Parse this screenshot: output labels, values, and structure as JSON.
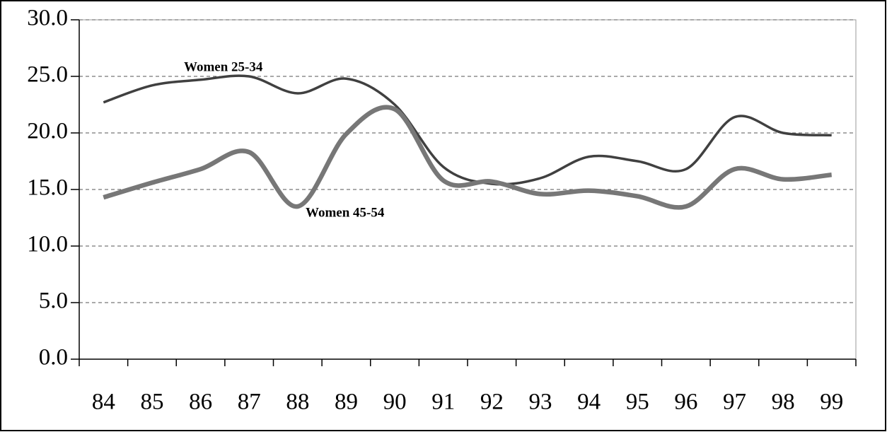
{
  "chart_data": {
    "type": "line",
    "categories": [
      "84",
      "85",
      "86",
      "87",
      "88",
      "89",
      "90",
      "91",
      "92",
      "93",
      "94",
      "95",
      "96",
      "97",
      "98",
      "99"
    ],
    "series": [
      {
        "name": "Women 25-34",
        "color": "#404040",
        "values": [
          22.7,
          24.2,
          24.7,
          25.0,
          23.5,
          24.8,
          22.5,
          17.0,
          15.5,
          16.0,
          17.9,
          17.5,
          16.8,
          21.4,
          20.0,
          19.8
        ]
      },
      {
        "name": "Women 45-54",
        "color": "#777777",
        "values": [
          14.3,
          15.6,
          16.8,
          18.3,
          13.5,
          19.9,
          22.1,
          15.8,
          15.7,
          14.6,
          14.9,
          14.4,
          13.5,
          16.8,
          15.9,
          16.3
        ]
      }
    ],
    "ylim": [
      0,
      30
    ],
    "yticks": [
      {
        "value": 0,
        "label": "0.0"
      },
      {
        "value": 5,
        "label": "5.0"
      },
      {
        "value": 10,
        "label": "10.0"
      },
      {
        "value": 15,
        "label": "15.0"
      },
      {
        "value": 20,
        "label": "20.0"
      },
      {
        "value": 25,
        "label": "25.0"
      },
      {
        "value": 30,
        "label": "30.0"
      }
    ],
    "grid": true
  }
}
